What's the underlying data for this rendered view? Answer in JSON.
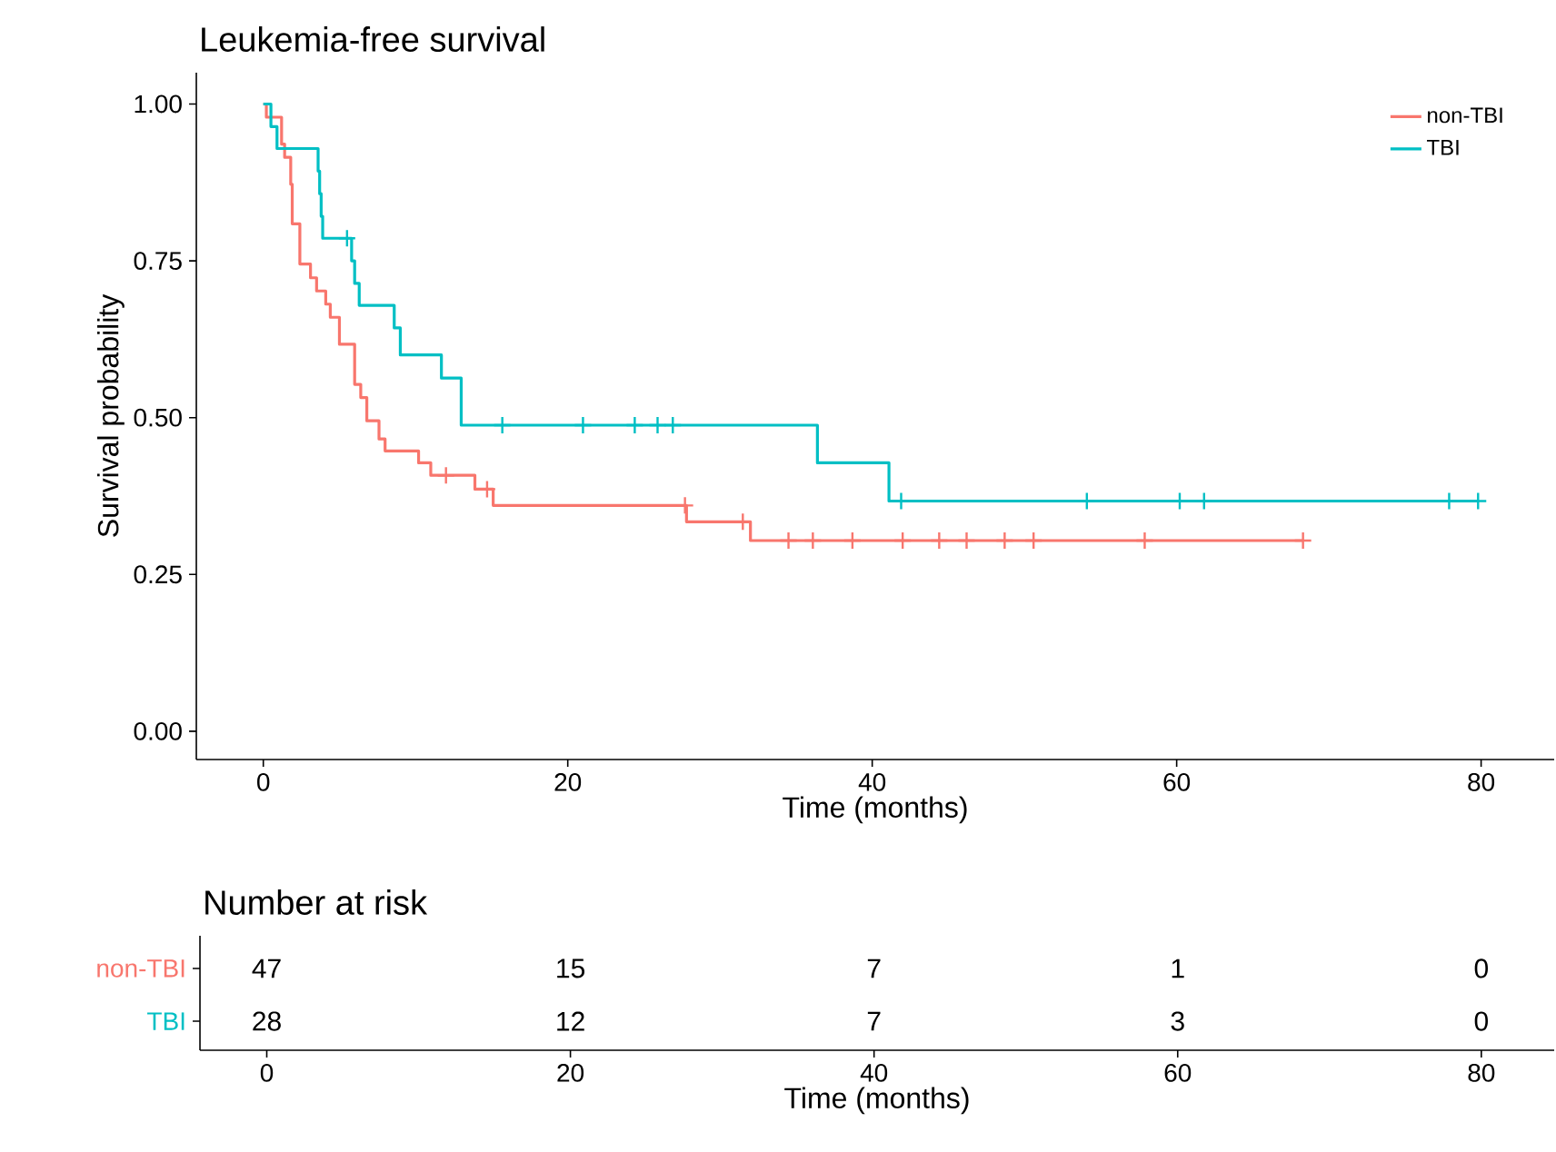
{
  "chart_data": [
    {
      "type": "step",
      "title": "Leukemia-free survival",
      "xlabel": "Time (months)",
      "ylabel": "Survival probability",
      "xlim": [
        -4.4,
        84.8
      ],
      "ylim": [
        -0.045,
        1.05
      ],
      "xticks": [
        0,
        20,
        40,
        60,
        80
      ],
      "yticks": [
        {
          "value": 0,
          "label": "0.00"
        },
        {
          "value": 0.25,
          "label": "0.25"
        },
        {
          "value": 0.5,
          "label": "0.50"
        },
        {
          "value": 0.75,
          "label": "0.75"
        },
        {
          "value": 1,
          "label": "1.00"
        }
      ],
      "grid": false,
      "legend": "top right",
      "series": [
        {
          "name": "non-TBI",
          "color": "#F8766D",
          "x": [
            0,
            0.2,
            1.2,
            1.4,
            1.8,
            1.9,
            2.4,
            3.1,
            3.5,
            4.1,
            4.4,
            5.0,
            6.0,
            6.4,
            6.8,
            7.6,
            8.0,
            10.2,
            11.0,
            13.9,
            15.1,
            27.8,
            32.0,
            68.3
          ],
          "values": [
            1.0,
            0.979,
            0.936,
            0.915,
            0.872,
            0.809,
            0.745,
            0.723,
            0.702,
            0.681,
            0.66,
            0.617,
            0.553,
            0.532,
            0.495,
            0.466,
            0.447,
            0.428,
            0.408,
            0.386,
            0.36,
            0.334,
            0.304,
            0.304
          ]
        },
        {
          "name": "TBI",
          "color": "#00BFC4",
          "x": [
            0,
            0.5,
            0.9,
            3.6,
            3.7,
            3.8,
            3.9,
            5.8,
            6.0,
            6.3,
            8.6,
            9.0,
            11.7,
            13.0,
            36.4,
            41.1,
            79.8
          ],
          "values": [
            1.0,
            0.964,
            0.929,
            0.893,
            0.857,
            0.821,
            0.786,
            0.75,
            0.714,
            0.679,
            0.643,
            0.6,
            0.563,
            0.488,
            0.428,
            0.367,
            0.367
          ]
        },
        {
          "type": "scatter",
          "marker": "cross",
          "color": "#F8766D",
          "x": [
            12.0,
            14.7,
            27.7,
            31.5,
            34.5,
            36.1,
            38.7,
            42.0,
            44.4,
            46.2,
            48.7,
            50.6,
            57.9,
            68.3
          ],
          "values": [
            0.408,
            0.386,
            0.36,
            0.334,
            0.304,
            0.304,
            0.304,
            0.304,
            0.304,
            0.304,
            0.304,
            0.304,
            0.304,
            0.304
          ]
        },
        {
          "type": "scatter",
          "marker": "cross",
          "color": "#00BFC4",
          "x": [
            5.5,
            15.7,
            21.0,
            24.4,
            25.9,
            26.9,
            41.9,
            54.1,
            60.2,
            61.8,
            77.9,
            79.8
          ],
          "values": [
            0.786,
            0.488,
            0.488,
            0.488,
            0.488,
            0.488,
            0.367,
            0.367,
            0.367,
            0.367,
            0.367,
            0.367
          ]
        }
      ]
    },
    {
      "type": "heatmap",
      "title": "Number at risk",
      "xlabel": "Time (months)",
      "categories": [
        "0",
        "20",
        "40",
        "60",
        "80"
      ],
      "data_labels": true,
      "y_categories": [
        "non-TBI",
        "TBI"
      ],
      "cells": [
        [
          47,
          15,
          7,
          1,
          0
        ],
        [
          28,
          12,
          7,
          3,
          0
        ]
      ]
    }
  ]
}
